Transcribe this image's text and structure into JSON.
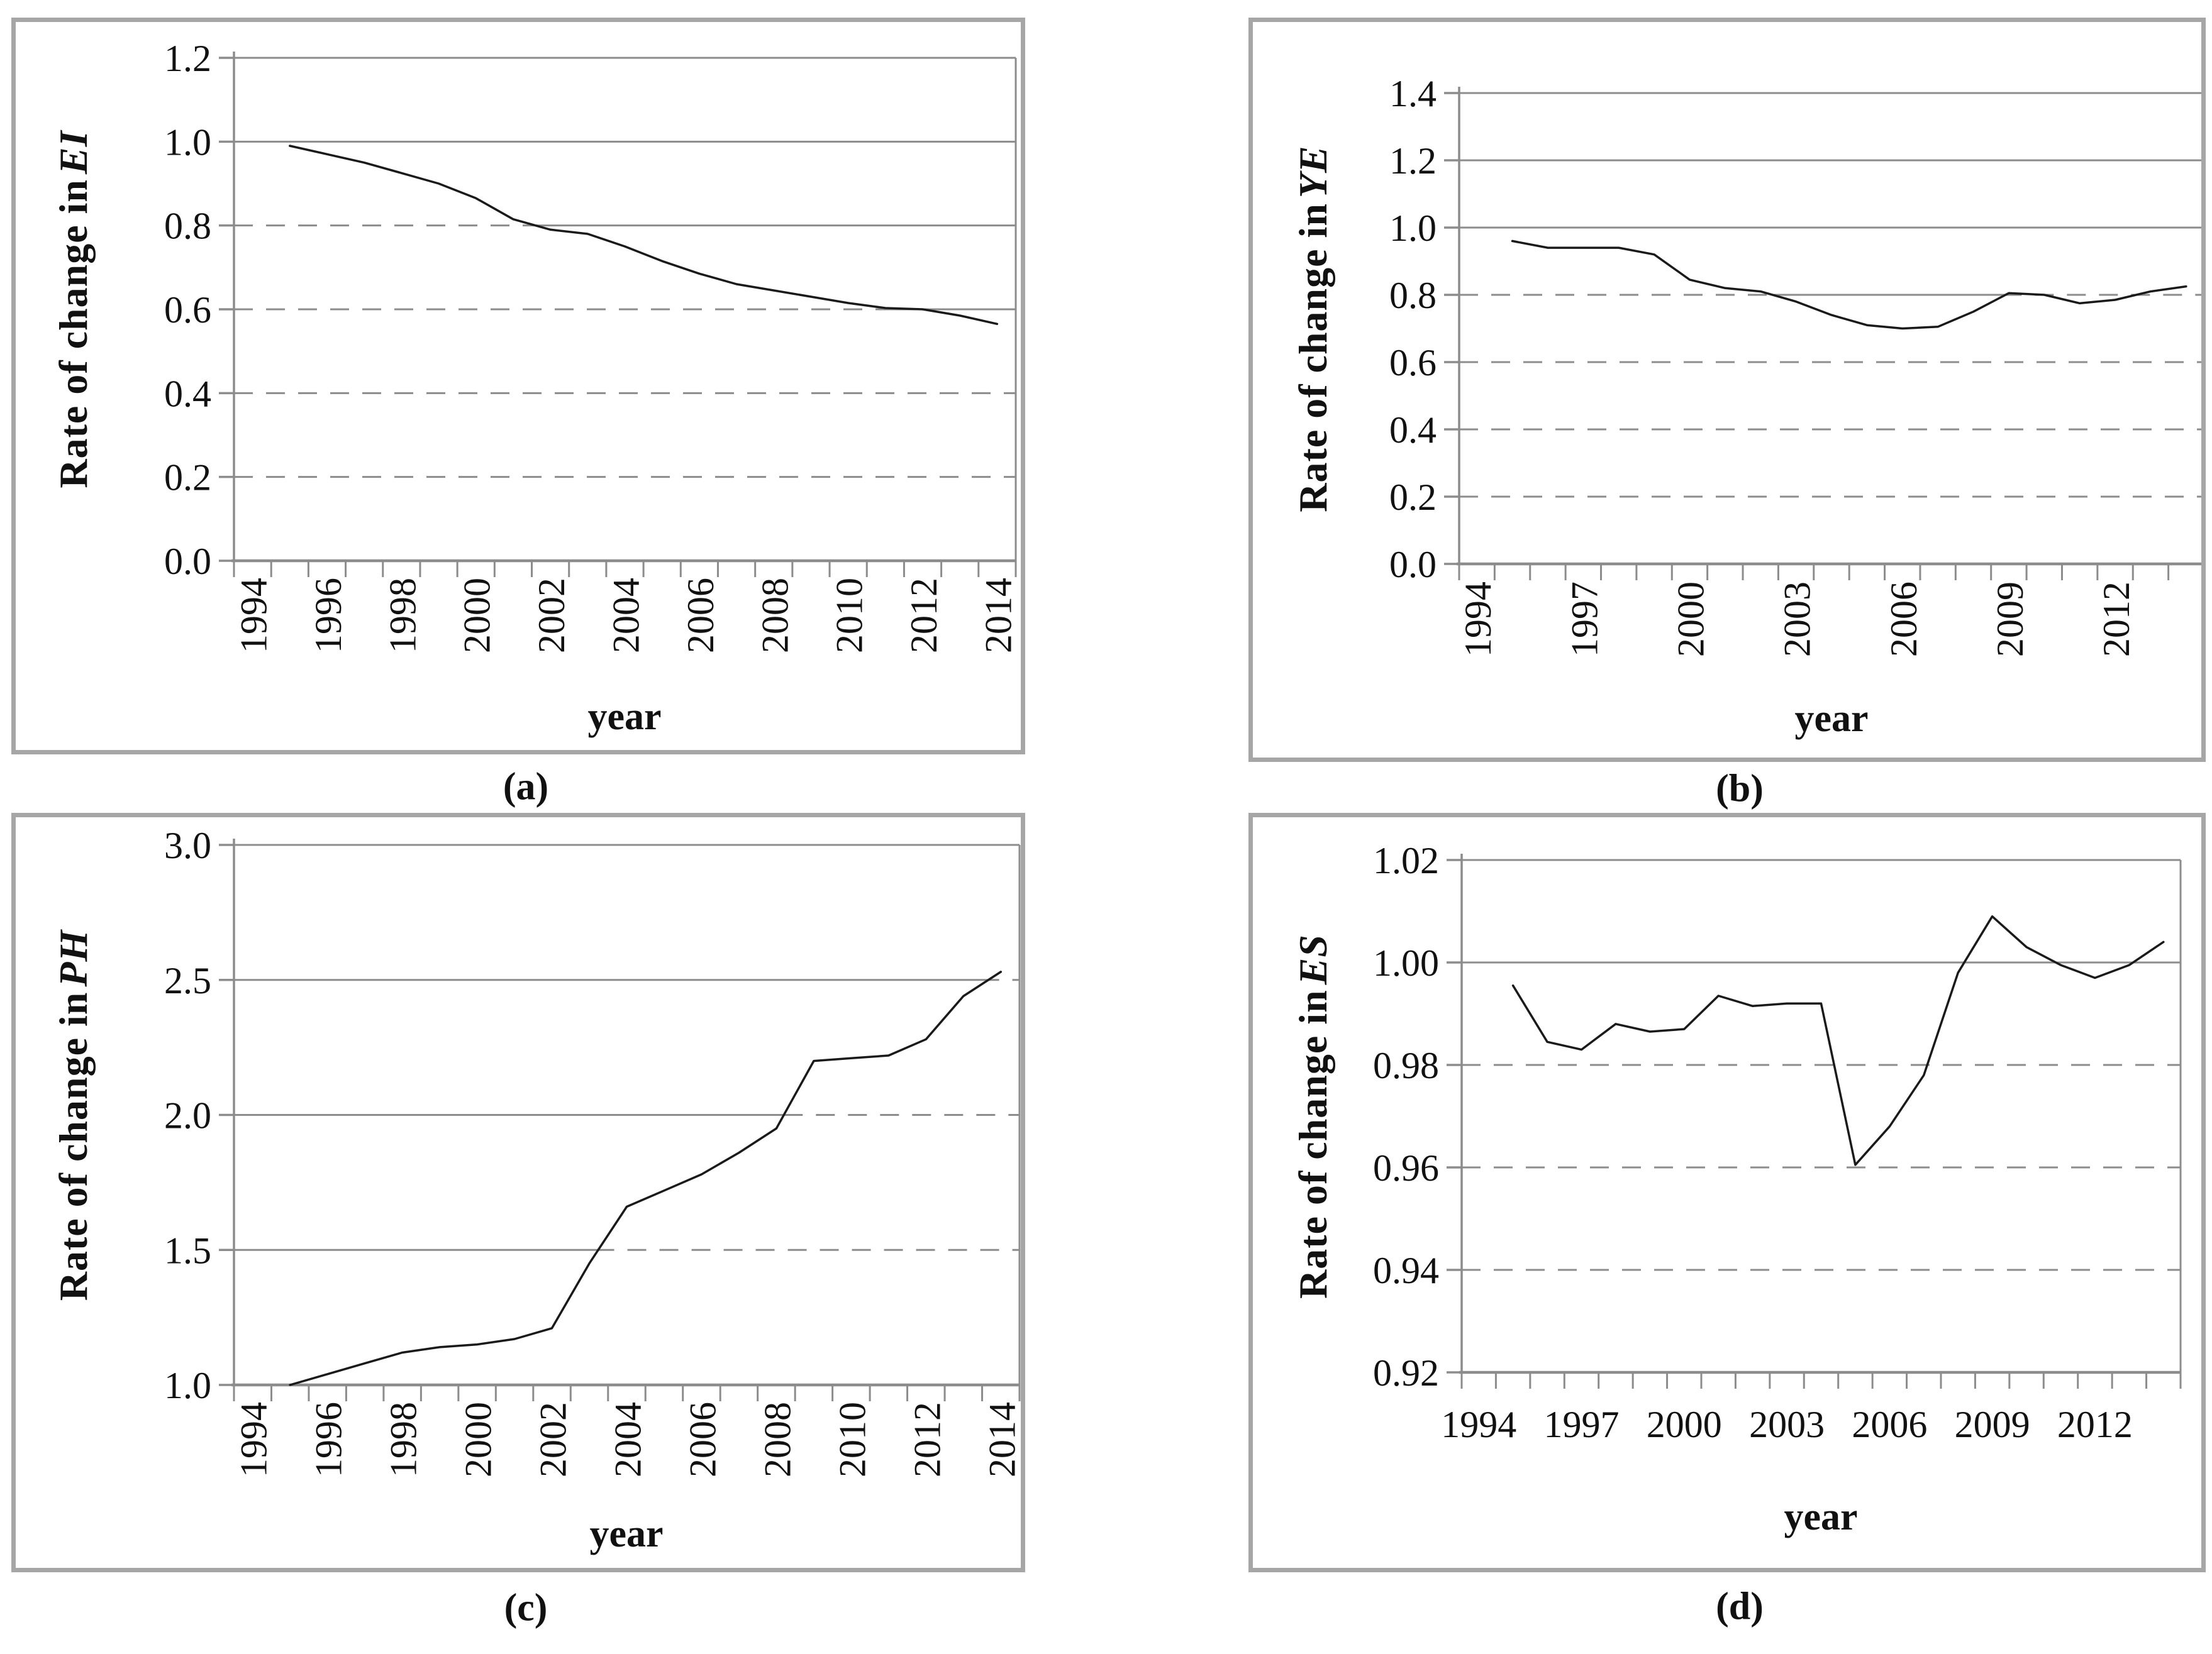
{
  "page": {
    "background": "#ffffff",
    "text_color": "#111111"
  },
  "colors": {
    "line": "#1a1a1a",
    "grid": "#8c8c8c",
    "axis": "#8c8c8c",
    "panel_border": "#a6a6a6"
  },
  "captions": {
    "a": "(a)",
    "b": "(b)",
    "c": "(c)",
    "d": "(d)"
  },
  "chart_data": [
    {
      "id": "a",
      "type": "line",
      "caption": "(a)",
      "ylabel_prefix": "Rate of change in",
      "ylabel_var": "EI",
      "xlabel": "year",
      "x_start": 1994,
      "x_count": 21,
      "years": [
        1995,
        1996,
        1997,
        1998,
        1999,
        2000,
        2001,
        2002,
        2003,
        2004,
        2005,
        2006,
        2007,
        2008,
        2009,
        2010,
        2011,
        2012,
        2013,
        2014
      ],
      "values": [
        0.99,
        0.97,
        0.95,
        0.925,
        0.9,
        0.865,
        0.815,
        0.79,
        0.78,
        0.75,
        0.715,
        0.685,
        0.66,
        0.645,
        0.63,
        0.615,
        0.603,
        0.6,
        0.585,
        0.565
      ],
      "ylim": [
        0.0,
        1.2
      ],
      "ytick_step": 0.2,
      "ytick_decimals": 1,
      "x_labels": [
        "1994",
        "1996",
        "1998",
        "2000",
        "2002",
        "2004",
        "2006",
        "2008",
        "2010",
        "2012",
        "2014"
      ],
      "x_label_rotated": true,
      "grid_on": true,
      "legend": "none",
      "gridlines": [
        {
          "value": 1.2,
          "segments": [
            [
              0,
              1,
              "solid"
            ]
          ]
        },
        {
          "value": 1.0,
          "segments": [
            [
              0,
              1,
              "solid"
            ]
          ]
        },
        {
          "value": 0.8,
          "segments": [
            [
              0,
              0.378,
              "dashed"
            ],
            [
              0.378,
              1,
              "solid"
            ]
          ]
        },
        {
          "value": 0.6,
          "segments": [
            [
              0,
              0.83,
              "dashed"
            ],
            [
              0.83,
              1,
              "solid"
            ]
          ]
        },
        {
          "value": 0.4,
          "segments": [
            [
              0,
              1,
              "dashed"
            ]
          ]
        },
        {
          "value": 0.2,
          "segments": [
            [
              0,
              1,
              "dashed"
            ]
          ]
        }
      ]
    },
    {
      "id": "b",
      "type": "line",
      "caption": "(b)",
      "ylabel_prefix": "Rate of change in",
      "ylabel_var": "YE",
      "xlabel": "year",
      "x_start": 1994,
      "x_count": 21,
      "years": [
        1995,
        1996,
        1997,
        1998,
        1999,
        2000,
        2001,
        2002,
        2003,
        2004,
        2005,
        2006,
        2007,
        2008,
        2009,
        2010,
        2011,
        2012,
        2013,
        2014
      ],
      "values": [
        0.96,
        0.94,
        0.94,
        0.94,
        0.92,
        0.845,
        0.82,
        0.81,
        0.78,
        0.74,
        0.71,
        0.7,
        0.705,
        0.75,
        0.805,
        0.8,
        0.775,
        0.785,
        0.81,
        0.825
      ],
      "ylim": [
        0.0,
        1.4
      ],
      "ytick_step": 0.2,
      "ytick_decimals": 1,
      "x_labels": [
        "1994",
        "1997",
        "2000",
        "2003",
        "2006",
        "2009",
        "2012"
      ],
      "x_label_rotated": true,
      "grid_on": true,
      "legend": "none",
      "gridlines": [
        {
          "value": 1.4,
          "segments": [
            [
              0,
              1,
              "solid"
            ]
          ]
        },
        {
          "value": 1.2,
          "segments": [
            [
              0,
              1,
              "solid"
            ]
          ]
        },
        {
          "value": 1.0,
          "segments": [
            [
              0,
              1,
              "solid"
            ]
          ]
        },
        {
          "value": 0.8,
          "segments": [
            [
              0,
              0.42,
              "dashed"
            ],
            [
              0.42,
              0.73,
              "solid"
            ],
            [
              0.73,
              1,
              "dashed"
            ]
          ]
        },
        {
          "value": 0.6,
          "segments": [
            [
              0,
              1,
              "dashed"
            ]
          ]
        },
        {
          "value": 0.4,
          "segments": [
            [
              0,
              1,
              "dashed"
            ]
          ]
        },
        {
          "value": 0.2,
          "segments": [
            [
              0,
              1,
              "dashed"
            ]
          ]
        }
      ]
    },
    {
      "id": "c",
      "type": "line",
      "caption": "(c)",
      "ylabel_prefix": "Rate of change in",
      "ylabel_var": "PH",
      "xlabel": "year",
      "x_start": 1994,
      "x_count": 21,
      "years": [
        1995,
        1996,
        1997,
        1998,
        1999,
        2000,
        2001,
        2002,
        2003,
        2004,
        2005,
        2006,
        2007,
        2008,
        2009,
        2010,
        2011,
        2012,
        2013,
        2014
      ],
      "values": [
        1.0,
        1.04,
        1.08,
        1.12,
        1.14,
        1.15,
        1.17,
        1.21,
        1.45,
        1.66,
        1.72,
        1.78,
        1.86,
        1.95,
        2.2,
        2.21,
        2.22,
        2.28,
        2.44,
        2.53
      ],
      "ylim": [
        1.0,
        3.0
      ],
      "ytick_step": 0.5,
      "ytick_decimals": 1,
      "x_labels": [
        "1994",
        "1996",
        "1998",
        "2000",
        "2002",
        "2004",
        "2006",
        "2008",
        "2010",
        "2012",
        "2014"
      ],
      "x_label_rotated": true,
      "grid_on": true,
      "legend": "none",
      "gridlines": [
        {
          "value": 3.0,
          "segments": [
            [
              0,
              1,
              "solid"
            ]
          ]
        },
        {
          "value": 2.5,
          "segments": [
            [
              0,
              0.95,
              "solid"
            ],
            [
              0.95,
              1,
              "dashed"
            ]
          ]
        },
        {
          "value": 2.0,
          "segments": [
            [
              0,
              0.7,
              "solid"
            ],
            [
              0.7,
              1,
              "dashed"
            ]
          ]
        },
        {
          "value": 1.5,
          "segments": [
            [
              0,
              0.46,
              "solid"
            ],
            [
              0.46,
              1,
              "dashed"
            ]
          ]
        }
      ]
    },
    {
      "id": "d",
      "type": "line",
      "caption": "(d)",
      "ylabel_prefix": "Rate of change in",
      "ylabel_var": "ES",
      "xlabel": "year",
      "x_start": 1994,
      "x_count": 21,
      "years": [
        1995,
        1996,
        1997,
        1998,
        1999,
        2000,
        2001,
        2002,
        2003,
        2004,
        2005,
        2006,
        2007,
        2008,
        2009,
        2010,
        2011,
        2012,
        2013,
        2014
      ],
      "values": [
        0.9955,
        0.9845,
        0.983,
        0.988,
        0.9865,
        0.987,
        0.9935,
        0.9915,
        0.992,
        0.992,
        0.9605,
        0.968,
        0.978,
        0.998,
        1.009,
        1.003,
        0.9995,
        0.997,
        0.9995,
        1.004
      ],
      "ylim": [
        0.92,
        1.02
      ],
      "ytick_step": 0.02,
      "ytick_decimals": 2,
      "x_labels": [
        "1994",
        "1997",
        "2000",
        "2003",
        "2006",
        "2009",
        "2012"
      ],
      "x_label_rotated": false,
      "grid_on": true,
      "legend": "none",
      "gridlines": [
        {
          "value": 1.02,
          "segments": [
            [
              0,
              1,
              "solid"
            ]
          ]
        },
        {
          "value": 1.0,
          "segments": [
            [
              0,
              1,
              "solid"
            ]
          ]
        },
        {
          "value": 0.98,
          "segments": [
            [
              0,
              1,
              "dashed"
            ]
          ]
        },
        {
          "value": 0.96,
          "segments": [
            [
              0,
              1,
              "dashed"
            ]
          ]
        },
        {
          "value": 0.94,
          "segments": [
            [
              0,
              1,
              "dashed"
            ]
          ]
        }
      ]
    }
  ]
}
